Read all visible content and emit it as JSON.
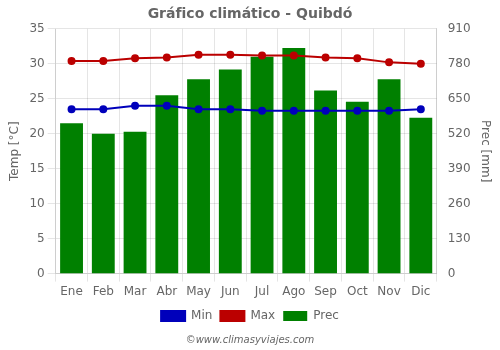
{
  "chart_data": {
    "type": "bar",
    "title": "Gráfico climático - Quibdó",
    "categories": [
      "Ene",
      "Feb",
      "Mar",
      "Abr",
      "May",
      "Jun",
      "Jul",
      "Ago",
      "Sep",
      "Oct",
      "Nov",
      "Dic"
    ],
    "series": [
      {
        "name": "Prec",
        "type": "bar",
        "axis": "y2",
        "color": "#008000",
        "values": [
          559,
          520,
          527,
          663,
          722,
          759,
          806,
          839,
          681,
          639,
          722,
          579
        ]
      },
      {
        "name": "Min",
        "type": "line",
        "color": "#0000bb",
        "marker": "circle",
        "values": [
          23.5,
          23.5,
          24.0,
          24.0,
          23.5,
          23.5,
          23.3,
          23.3,
          23.3,
          23.3,
          23.3,
          23.5
        ]
      },
      {
        "name": "Max",
        "type": "line",
        "color": "#bb0000",
        "marker": "circle",
        "values": [
          30.4,
          30.4,
          30.8,
          30.9,
          31.3,
          31.3,
          31.2,
          31.2,
          30.9,
          30.8,
          30.2,
          30.0
        ]
      }
    ],
    "ylabel": "Temp [°C]",
    "y2label": "Prec [mm]",
    "ylim": [
      0,
      35
    ],
    "yticks": [
      0,
      5,
      10,
      15,
      20,
      25,
      30,
      35
    ],
    "y2lim": [
      0,
      910
    ],
    "y2ticks": [
      0,
      130,
      260,
      390,
      520,
      650,
      780,
      910
    ],
    "grid": true,
    "legend": "bottom",
    "annotations": [
      "©www.climasyviajes.com"
    ]
  }
}
